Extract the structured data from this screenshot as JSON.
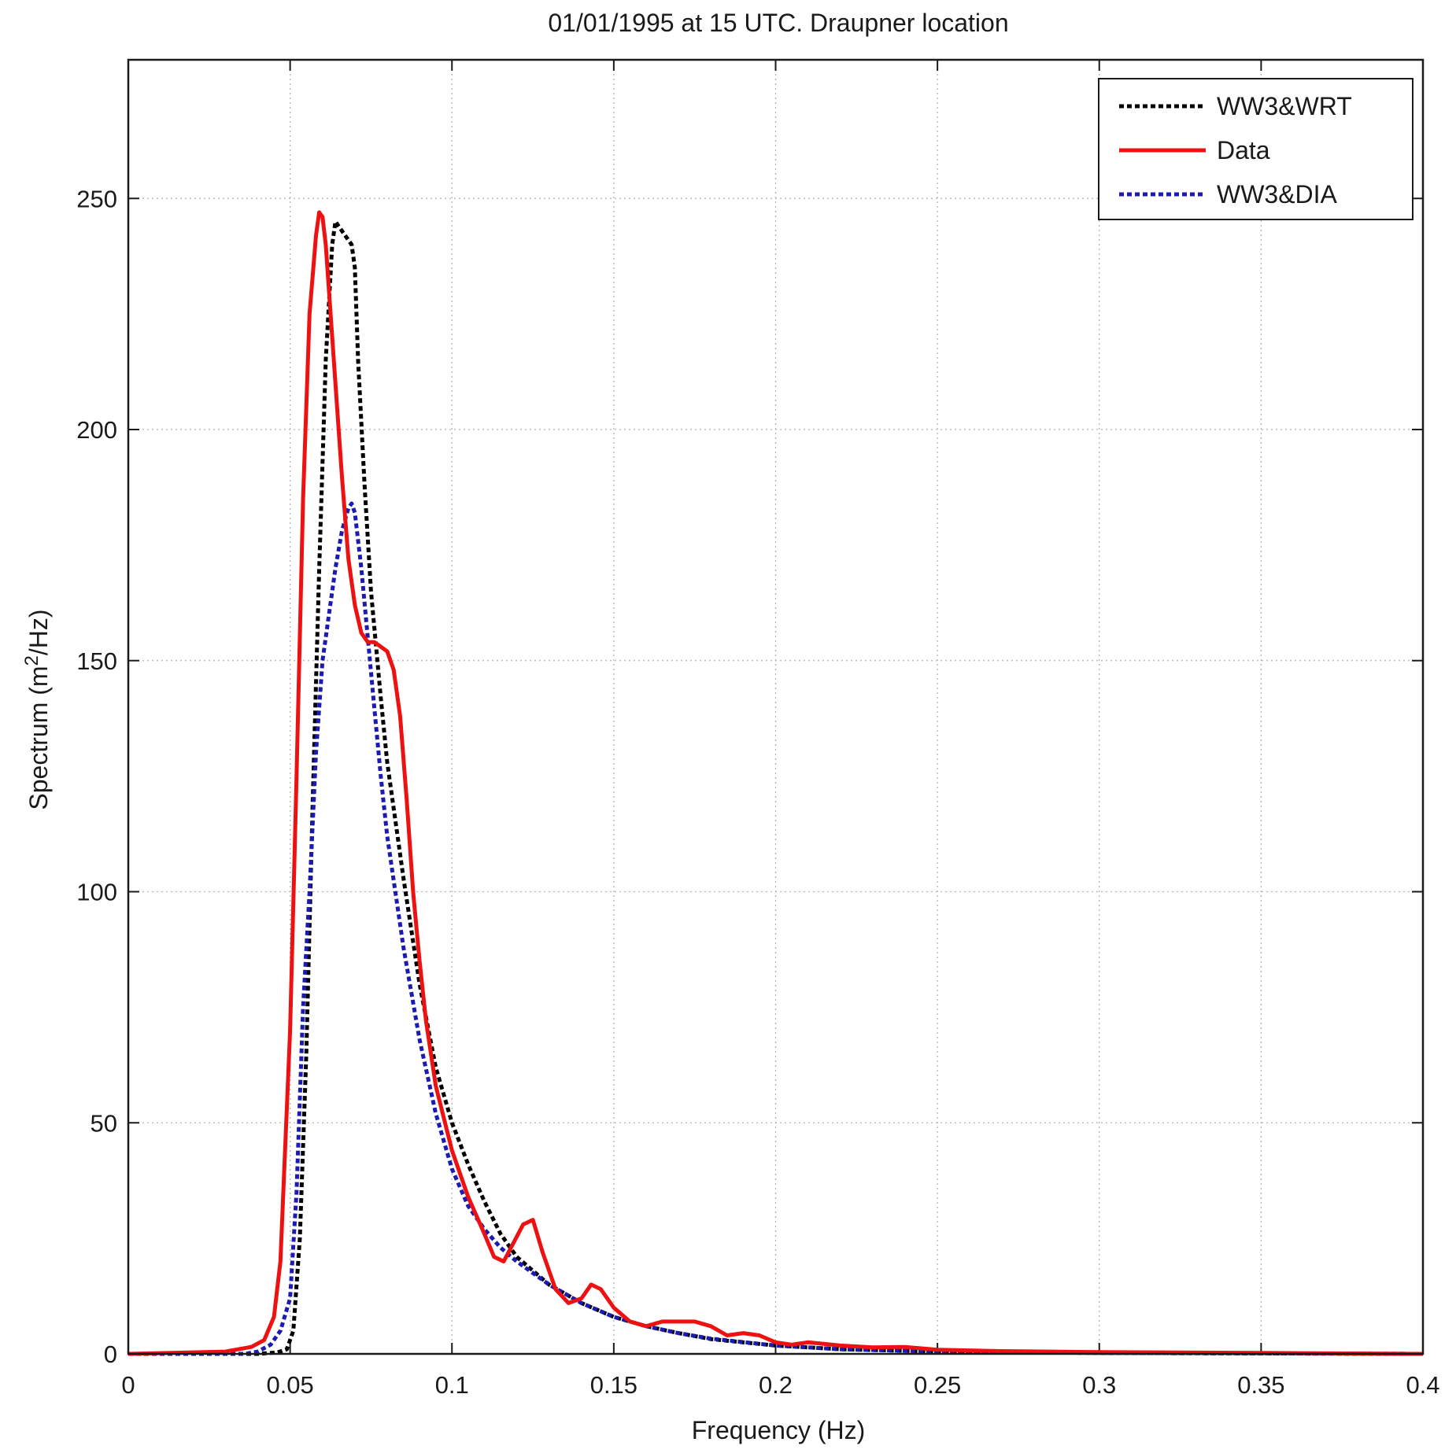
{
  "chart_data": {
    "type": "line",
    "title": "01/01/1995 at 15 UTC. Draupner location",
    "xlabel": "Frequency (Hz)",
    "ylabel": {
      "prefix": "Spectrum (m",
      "sup": "2",
      "suffix": "/Hz)"
    },
    "xlim": [
      0,
      0.4
    ],
    "ylim": [
      0,
      280
    ],
    "xticks": [
      0,
      0.05,
      0.1,
      0.15,
      0.2,
      0.25,
      0.3,
      0.35,
      0.4
    ],
    "xtick_labels": [
      "0",
      "0.05",
      "0.1",
      "0.15",
      "0.2",
      "0.25",
      "0.3",
      "0.35",
      "0.4"
    ],
    "yticks": [
      0,
      50,
      100,
      150,
      200,
      250
    ],
    "ytick_labels": [
      "0",
      "50",
      "100",
      "150",
      "200",
      "250"
    ],
    "grid": true,
    "legend_position": "top-right",
    "series": [
      {
        "name": "WW3&WRT",
        "color": "#000000",
        "style": "dotted",
        "x": [
          0,
          0.04,
          0.046,
          0.049,
          0.051,
          0.053,
          0.055,
          0.057,
          0.059,
          0.061,
          0.063,
          0.064,
          0.065,
          0.067,
          0.069,
          0.07,
          0.071,
          0.073,
          0.075,
          0.078,
          0.08,
          0.085,
          0.09,
          0.095,
          0.1,
          0.105,
          0.11,
          0.115,
          0.12,
          0.13,
          0.14,
          0.15,
          0.16,
          0.17,
          0.18,
          0.2,
          0.22,
          0.25,
          0.3,
          0.35,
          0.4
        ],
        "y": [
          0,
          0,
          0.3,
          1,
          5,
          25,
          65,
          120,
          170,
          215,
          240,
          245,
          244,
          242,
          240,
          235,
          215,
          188,
          165,
          142,
          128,
          103,
          80,
          62,
          50,
          41,
          33,
          26,
          21,
          15,
          11,
          8,
          6,
          4.5,
          3.2,
          1.8,
          1.0,
          0.5,
          0.2,
          0.1,
          0
        ]
      },
      {
        "name": "Data",
        "color": "#ee1111",
        "style": "solid",
        "x": [
          0,
          0.03,
          0.038,
          0.042,
          0.045,
          0.047,
          0.05,
          0.052,
          0.054,
          0.056,
          0.058,
          0.059,
          0.06,
          0.061,
          0.062,
          0.064,
          0.066,
          0.068,
          0.07,
          0.072,
          0.074,
          0.076,
          0.078,
          0.08,
          0.082,
          0.084,
          0.086,
          0.088,
          0.09,
          0.092,
          0.095,
          0.1,
          0.105,
          0.11,
          0.113,
          0.116,
          0.119,
          0.122,
          0.125,
          0.128,
          0.132,
          0.136,
          0.14,
          0.143,
          0.146,
          0.15,
          0.155,
          0.16,
          0.165,
          0.17,
          0.175,
          0.18,
          0.185,
          0.19,
          0.195,
          0.2,
          0.205,
          0.21,
          0.22,
          0.23,
          0.24,
          0.25,
          0.27,
          0.3,
          0.35,
          0.4
        ],
        "y": [
          0,
          0.5,
          1.5,
          3,
          8,
          20,
          70,
          125,
          185,
          225,
          242,
          247,
          246,
          240,
          230,
          210,
          190,
          172,
          162,
          156,
          154,
          154,
          153,
          152,
          148,
          138,
          120,
          100,
          85,
          72,
          58,
          44,
          34,
          26,
          21,
          20,
          24,
          28,
          29,
          22,
          14,
          11,
          12,
          15,
          14,
          10,
          7,
          6,
          7,
          7,
          7,
          6,
          4,
          4.5,
          4,
          2.5,
          2,
          2.5,
          1.8,
          1.4,
          1.5,
          0.9,
          0.6,
          0.4,
          0.2,
          0
        ]
      },
      {
        "name": "WW3&DIA",
        "color": "#1b1bb3",
        "style": "dotted",
        "x": [
          0,
          0.036,
          0.04,
          0.044,
          0.047,
          0.05,
          0.052,
          0.054,
          0.056,
          0.058,
          0.06,
          0.062,
          0.064,
          0.066,
          0.068,
          0.069,
          0.07,
          0.072,
          0.074,
          0.076,
          0.078,
          0.08,
          0.085,
          0.09,
          0.095,
          0.1,
          0.105,
          0.11,
          0.115,
          0.12,
          0.13,
          0.14,
          0.15,
          0.16,
          0.17,
          0.18,
          0.2,
          0.22,
          0.25,
          0.3,
          0.35,
          0.4
        ],
        "y": [
          0,
          0,
          0.5,
          2,
          5,
          12,
          35,
          75,
          100,
          130,
          150,
          160,
          170,
          178,
          183,
          184,
          182,
          170,
          155,
          140,
          125,
          112,
          88,
          68,
          52,
          40,
          32,
          27,
          23,
          20,
          15,
          11,
          8,
          6,
          4.5,
          3.3,
          1.8,
          1.0,
          0.5,
          0.2,
          0.1,
          0
        ]
      }
    ]
  }
}
